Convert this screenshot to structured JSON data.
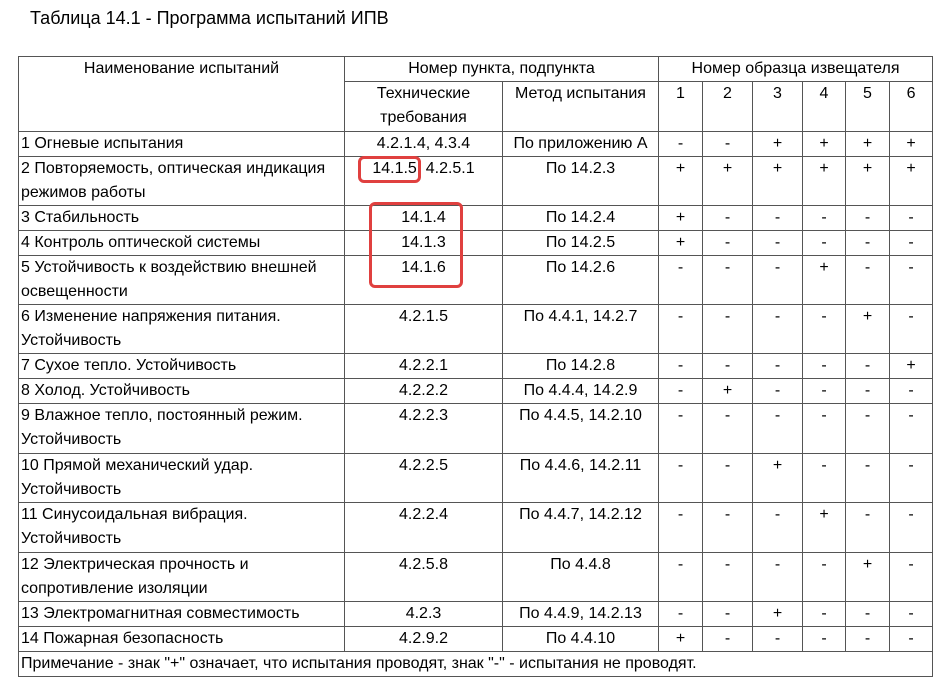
{
  "title": "Таблица 14.1 - Программа испытаний ИПВ",
  "table": {
    "header": {
      "name": "Наименование испытаний",
      "clause": "Номер пункта, подпункта",
      "requirements": "Технические требования",
      "method": "Метод испытания",
      "samples": "Номер образца извещателя",
      "sample_numbers": [
        "1",
        "2",
        "3",
        "4",
        "5",
        "6"
      ]
    },
    "rows": [
      [
        "1 Огневые испытания",
        "4.2.1.4, 4.3.4",
        "По приложению А",
        "-",
        "-",
        "+",
        "+",
        "+",
        "+"
      ],
      [
        "2 Повторяемость, оптическая индикация режимов работы",
        "14.1.5, 4.2.5.1",
        "По 14.2.3",
        "+",
        "+",
        "+",
        "+",
        "+",
        "+"
      ],
      [
        "3 Стабильность",
        "14.1.4",
        "По 14.2.4",
        "+",
        "-",
        "-",
        "-",
        "-",
        "-"
      ],
      [
        "4 Контроль оптической системы",
        "14.1.3",
        "По 14.2.5",
        "+",
        "-",
        "-",
        "-",
        "-",
        "-"
      ],
      [
        "5 Устойчивость к воздействию внешней освещенности",
        "14.1.6",
        "По 14.2.6",
        "-",
        "-",
        "-",
        "+",
        "-",
        "-"
      ],
      [
        "6 Изменение напряжения питания. Устойчивость",
        "4.2.1.5",
        "По 4.4.1, 14.2.7",
        "-",
        "-",
        "-",
        "-",
        "+",
        "-"
      ],
      [
        "7 Сухое тепло. Устойчивость",
        "4.2.2.1",
        "По 14.2.8",
        "-",
        "-",
        "-",
        "-",
        "-",
        "+"
      ],
      [
        "8 Холод. Устойчивость",
        "4.2.2.2",
        "По 4.4.4, 14.2.9",
        "-",
        "+",
        "-",
        "-",
        "-",
        "-"
      ],
      [
        "9 Влажное тепло, постоянный режим. Устойчивость",
        "4.2.2.3",
        "По 4.4.5, 14.2.10",
        "-",
        "-",
        "-",
        "-",
        "-",
        "-"
      ],
      [
        "10 Прямой механический удар. Устойчивость",
        "4.2.2.5",
        "По 4.4.6, 14.2.11",
        "-",
        "-",
        "+",
        "-",
        "-",
        "-"
      ],
      [
        "11 Синусоидальная вибрация. Устойчивость",
        "4.2.2.4",
        "По 4.4.7, 14.2.12",
        "-",
        "-",
        "-",
        "+",
        "-",
        "-"
      ],
      [
        "12 Электрическая прочность и сопротивление изоляции",
        "4.2.5.8",
        "По 4.4.8",
        "-",
        "-",
        "-",
        "-",
        "+",
        "-"
      ],
      [
        "13 Электромагнитная совместимость",
        "4.2.3",
        "По 4.4.9, 14.2.13",
        "-",
        "-",
        "+",
        "-",
        "-",
        "-"
      ],
      [
        "14 Пожарная безопасность",
        "4.2.9.2",
        "По 4.4.10",
        "+",
        "-",
        "-",
        "-",
        "-",
        "-"
      ]
    ],
    "note": "Примечание - знак \"+\" означает, что испытания проводят, знак \"-\" - испытания не проводят."
  }
}
